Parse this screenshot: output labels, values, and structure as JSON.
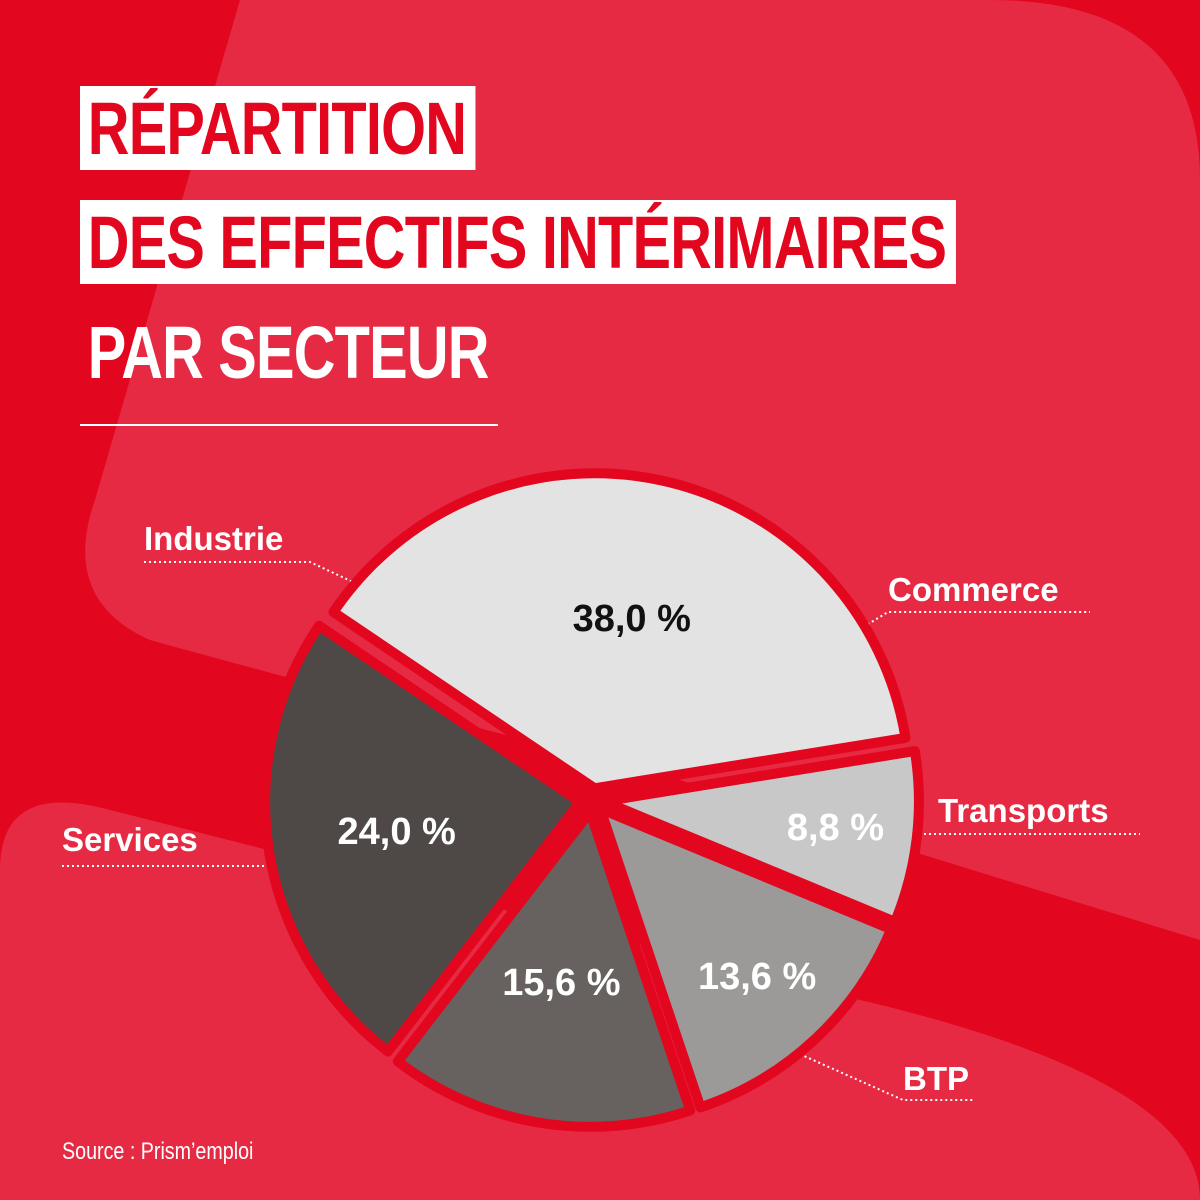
{
  "title": {
    "line1": "RÉPARTITION",
    "line2": "DES EFFECTIFS INTÉRIMAIRES",
    "line3": "PAR SECTEUR"
  },
  "source": "Source : Prism’emploi",
  "colors": {
    "background": "#e3061f",
    "background_shape": "#e72a43",
    "title_box": "#ffffff",
    "title_text": "#e3061f"
  },
  "chart_data": {
    "type": "pie",
    "title": "RÉPARTITION DES EFFECTIFS INTÉRIMAIRES PAR SECTEUR",
    "slices": [
      {
        "label": "Industrie",
        "value": 38.0,
        "display": "38,0 %",
        "color": "#e3e3e3",
        "text_color": "#111111"
      },
      {
        "label": "Commerce",
        "value": 8.8,
        "display": "8,8 %",
        "color": "#c9c8c8",
        "text_color": "#ffffff"
      },
      {
        "label": "Transports",
        "value": 13.6,
        "display": "13,6 %",
        "color": "#9b9a98",
        "text_color": "#ffffff"
      },
      {
        "label": "BTP",
        "value": 15.6,
        "display": "15,6 %",
        "color": "#67625f",
        "text_color": "#ffffff"
      },
      {
        "label": "Services",
        "value": 24.0,
        "display": "24,0 %",
        "color": "#4e4946",
        "text_color": "#ffffff"
      }
    ]
  }
}
